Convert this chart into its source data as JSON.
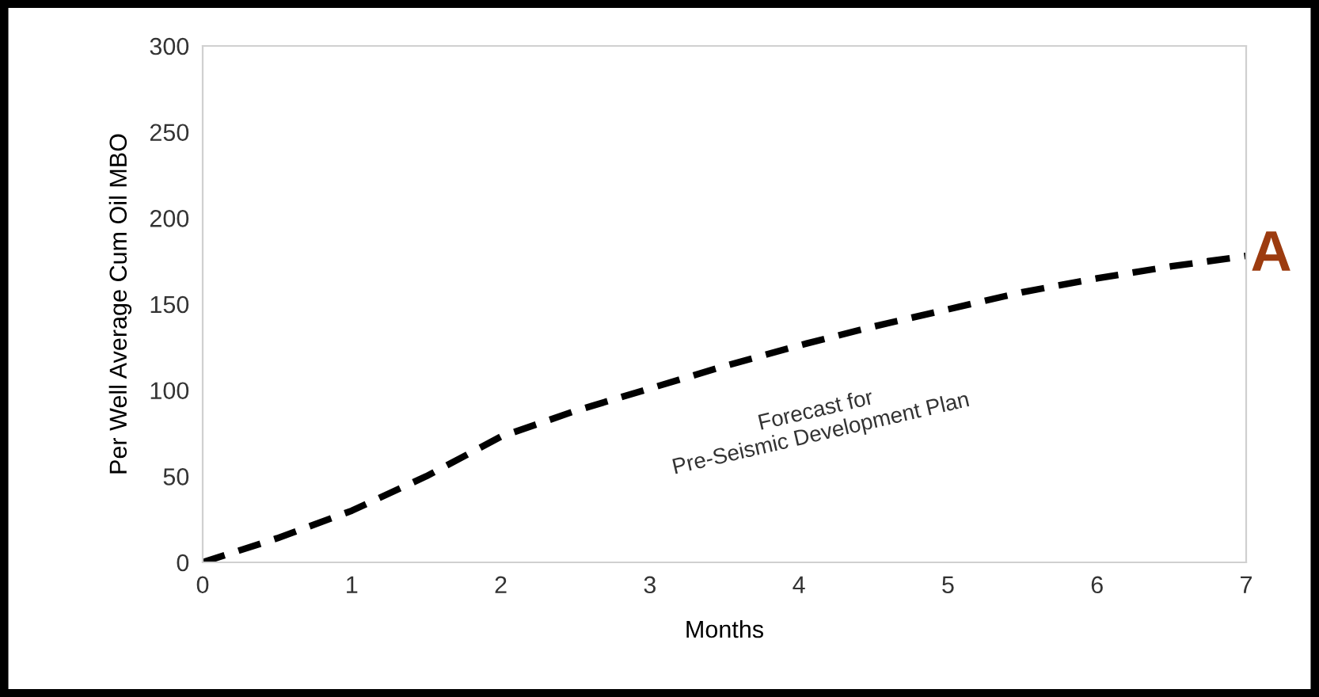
{
  "chart_data": {
    "type": "line",
    "xlabel": "Months",
    "ylabel": "Per Well Average Cum Oil MBO",
    "x": [
      0,
      0.5,
      1,
      1.5,
      2,
      2.5,
      3,
      3.5,
      4,
      4.5,
      5,
      5.5,
      6,
      6.5,
      7
    ],
    "series": [
      {
        "color": "#000000",
        "values": [
          0,
          14,
          30,
          50,
          73,
          88,
          101,
          114,
          126,
          137,
          147,
          157,
          165,
          172,
          178
        ]
      }
    ],
    "line_style": "dashed",
    "marker": "none",
    "xlim": [
      0,
      7
    ],
    "xticks": [
      0,
      1,
      2,
      3,
      4,
      5,
      6,
      7
    ],
    "ylim": [
      0,
      300
    ],
    "yticks": [
      0,
      50,
      100,
      150,
      200,
      250,
      300
    ],
    "grid": false,
    "legend": false,
    "annotations": [
      "Forecast for\nPre-Seismic Development Plan",
      {
        "text": "A",
        "x": 7,
        "y": 178
      }
    ]
  }
}
